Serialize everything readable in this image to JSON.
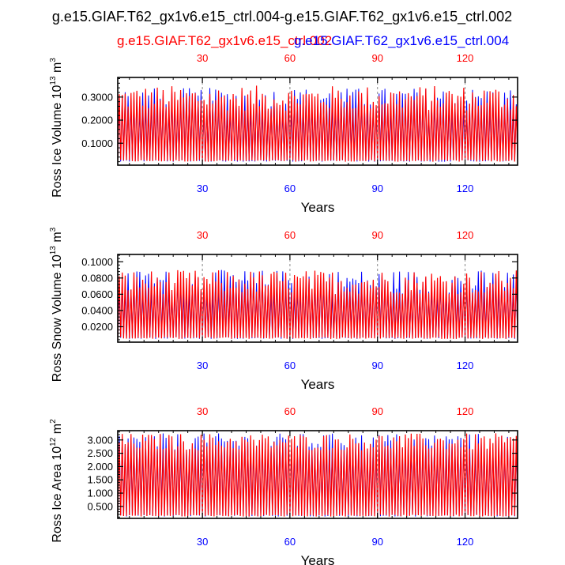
{
  "figure": {
    "title": "g.e15.GIAF.T62_gx1v6.e15_ctrl.004-g.e15.GIAF.T62_gx1v6.e15_ctrl.002",
    "legend_red": "g.e15.GIAF.T62_gx1v6.e15_ctrl.002",
    "legend_blue": "g.e15.GIAF.T62_gx1v6.e15_ctrl.004"
  },
  "colors": {
    "red": "#ff0000",
    "blue": "#0000ff",
    "ref_line": "#888888"
  },
  "chart_data": [
    {
      "type": "line",
      "ylabel": "Ross Ice Volume 10^13 m^3",
      "xlabel": "Years",
      "xlim": [
        1,
        138
      ],
      "ylim": [
        0.005,
        0.385
      ],
      "xticks": [
        30,
        60,
        90,
        120
      ],
      "yticks": [
        0.1,
        0.2,
        0.3
      ],
      "ytick_labels": [
        "0.1000",
        "0.2000",
        "0.3000"
      ],
      "reference_years": [
        30,
        60,
        90,
        120
      ],
      "series": [
        {
          "name": "g.e15.GIAF.T62_gx1v6.e15_ctrl.002",
          "color": "#ff0000",
          "seasonal_min": 0.02,
          "seasonal_max_range": [
            0.24,
            0.35
          ]
        },
        {
          "name": "g.e15.GIAF.T62_gx1v6.e15_ctrl.004",
          "color": "#0000ff",
          "seasonal_min": 0.02,
          "seasonal_max_range": [
            0.24,
            0.34
          ]
        }
      ]
    },
    {
      "type": "line",
      "ylabel": "Ross Snow Volume 10^13 m^3",
      "xlabel": "Years",
      "xlim": [
        1,
        138
      ],
      "ylim": [
        0.001,
        0.109
      ],
      "xticks": [
        30,
        60,
        90,
        120
      ],
      "yticks": [
        0.02,
        0.04,
        0.06,
        0.08,
        0.1
      ],
      "ytick_labels": [
        "0.0200",
        "0.0400",
        "0.0600",
        "0.0800",
        "0.1000"
      ],
      "reference_years": [
        30,
        60,
        90,
        120
      ],
      "series": [
        {
          "name": "g.e15.GIAF.T62_gx1v6.e15_ctrl.002",
          "color": "#ff0000",
          "seasonal_min": 0.005,
          "seasonal_max_range": [
            0.06,
            0.09
          ]
        },
        {
          "name": "g.e15.GIAF.T62_gx1v6.e15_ctrl.004",
          "color": "#0000ff",
          "seasonal_min": 0.005,
          "seasonal_max_range": [
            0.06,
            0.09
          ]
        }
      ]
    },
    {
      "type": "line",
      "ylabel": "Ross Ice Area 10^12 m^2",
      "xlabel": "Years",
      "xlim": [
        1,
        138
      ],
      "ylim": [
        0.05,
        3.35
      ],
      "xticks": [
        30,
        60,
        90,
        120
      ],
      "yticks": [
        0.5,
        1.0,
        1.5,
        2.0,
        2.5,
        3.0
      ],
      "ytick_labels": [
        "0.500",
        "1.000",
        "1.500",
        "2.000",
        "2.500",
        "3.000"
      ],
      "reference_years": [
        30,
        60,
        90,
        120
      ],
      "series": [
        {
          "name": "g.e15.GIAF.T62_gx1v6.e15_ctrl.002",
          "color": "#ff0000",
          "seasonal_min": 0.12,
          "seasonal_max_range": [
            2.6,
            3.25
          ]
        },
        {
          "name": "g.e15.GIAF.T62_gx1v6.e15_ctrl.004",
          "color": "#0000ff",
          "seasonal_min": 0.12,
          "seasonal_max_range": [
            2.6,
            3.25
          ]
        }
      ]
    }
  ]
}
